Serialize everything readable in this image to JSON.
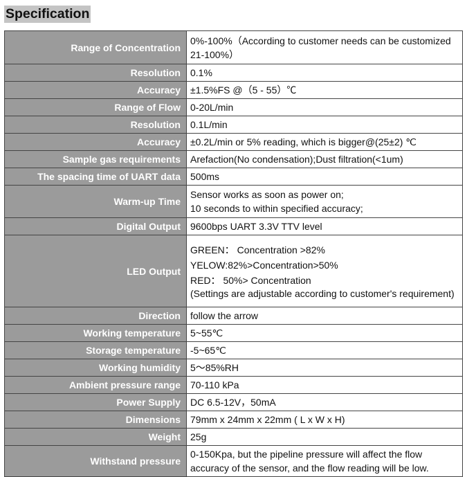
{
  "title": "Specification",
  "rows": [
    {
      "label": "Range of Concentration",
      "lines": [
        "0%-100%（According to customer needs can be customized 21-100%）"
      ]
    },
    {
      "label": "Resolution",
      "lines": [
        "0.1%"
      ]
    },
    {
      "label": "Accuracy",
      "lines": [
        "±1.5%FS @（5 - 55）℃"
      ]
    },
    {
      "label": "Range of Flow",
      "lines": [
        "0-20L/min"
      ]
    },
    {
      "label": "Resolution",
      "lines": [
        "0.1L/min"
      ]
    },
    {
      "label": "Accuracy",
      "lines": [
        "±0.2L/min or 5% reading, which is bigger@(25±2) ℃"
      ]
    },
    {
      "label": "Sample gas requirements",
      "lines": [
        "Arefaction(No condensation);Dust filtration(<1um)"
      ]
    },
    {
      "label": "The spacing time of UART data",
      "lines": [
        "500ms"
      ]
    },
    {
      "label": "Warm-up Time",
      "lines": [
        "Sensor works as soon as power on;",
        "10 seconds to within specified accuracy;"
      ]
    },
    {
      "label": "Digital Output",
      "lines": [
        "9600bps    UART      3.3V TTV level"
      ]
    },
    {
      "label": "LED Output",
      "lines": [
        "GREEN：  Concentration >82%",
        "YELOW:82%>Concentration>50%",
        "RED：  50%> Concentration",
        "(Settings are adjustable according to customer's requirement)"
      ]
    },
    {
      "label": "Direction",
      "lines": [
        "follow the arrow"
      ]
    },
    {
      "label": "Working temperature",
      "lines": [
        "5~55℃"
      ]
    },
    {
      "label": "Storage temperature",
      "lines": [
        "-5~65℃"
      ]
    },
    {
      "label": "Working humidity",
      "lines": [
        "5～85%RH"
      ]
    },
    {
      "label": "Ambient pressure range",
      "lines": [
        "70-110 kPa"
      ]
    },
    {
      "label": "Power Supply",
      "lines": [
        "DC 6.5-12V，50mA"
      ]
    },
    {
      "label": "Dimensions",
      "lines": [
        "79mm x 24mm x 22mm ( L x W x H)"
      ]
    },
    {
      "label": "Weight",
      "lines": [
        "25g"
      ]
    },
    {
      "label": "Withstand pressure",
      "lines": [
        "0-150Kpa, but the pipeline pressure will affect the flow accuracy of the sensor, and the flow reading will be low."
      ]
    }
  ]
}
